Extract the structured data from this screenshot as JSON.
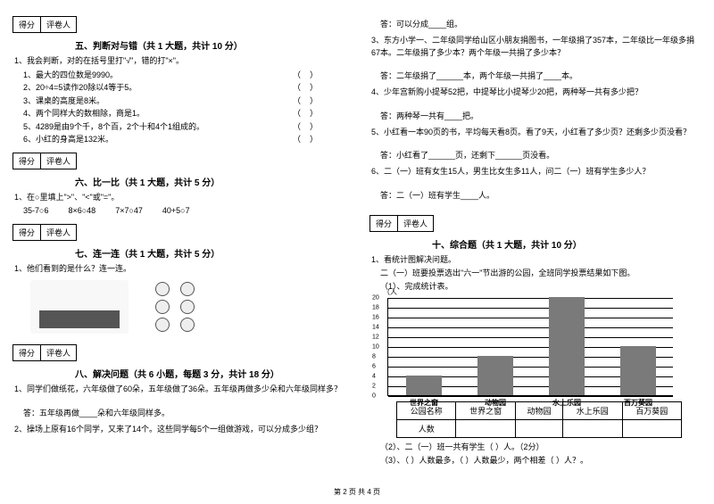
{
  "scorebox": {
    "score": "得分",
    "marker": "评卷人"
  },
  "sec5": {
    "title": "五、判断对与错（共 1 大题，共计 10 分）",
    "lead": "1、我会判断，对的在括号里打\"√\"，错的打\"×\"。",
    "items": [
      "1、最大的四位数是9990。",
      "2、20÷4=5读作20除以4等于5。",
      "3、课桌的高度是8米。",
      "4、两个同样大的数相除，商是1。",
      "5、4289是由9个千，8个百，2个十和4个1组成的。",
      "6、小红的身高是132米。"
    ]
  },
  "sec6": {
    "title": "六、比一比（共 1 大题，共计 5 分）",
    "lead": "1、在○里填上\">\"、\"<\"或\"=\"。",
    "row": [
      "35-7○6",
      "8×6○48",
      "7×7○47",
      "40+5○7"
    ]
  },
  "sec7": {
    "title": "七、连一连（共 1 大题，共计 5 分）",
    "lead": "1、他们看到的是什么？连一连。"
  },
  "sec8": {
    "title": "八、解决问题（共 6 小题，每题 3 分，共计 18 分）",
    "q1": "1、同学们做纸花，六年级做了60朵，五年级做了36朵。五年级再做多少朵和六年级同样多？",
    "a1": "答：五年级再做____朵和六年级同样多。",
    "q2": "2、操场上原有16个同学，又来了14个。这些同学每5个一组做游戏，可以分成多少组？",
    "a2top": "答：可以分成____组。",
    "q3": "3、东方小学一、二年级同学给山区小朋友捐图书，一年级捐了357本，二年级比一年级多捐67本。二年级捐了多少本？两个年级一共捐了多少本？",
    "a3": "答：二年级捐了______本，两个年级一共捐了____本。",
    "q4": "4、少年宫新购小提琴52把，中提琴比小提琴少20把，两种琴一共有多少把？",
    "a4": "答：两种琴一共有____把。",
    "q5": "5、小红看一本90页的书，平均每天看8页。看了9天，小红看了多少页？还剩多少页没看？",
    "a5": "答：小红看了______页，还剩下______页没看。",
    "q6": "6、二（一）班有女生15人，男生比女生多11人，问二（一）班有学生多少人？",
    "a6": "答：二（一）班有学生____人。"
  },
  "sec10": {
    "title": "十、综合题（共 1 大题，共计 10 分）",
    "lead": "1、看统计图解决问题。",
    "sub1": "二（一）班要投票选出\"六一\"节出游的公园，全班同学投票结果如下图。",
    "sub2": "（1）、完成统计表。",
    "chart": {
      "ytitle": "（人",
      "ymax": 20,
      "ticks": [
        20,
        18,
        16,
        14,
        12,
        10,
        8,
        6,
        4,
        2,
        0
      ],
      "categories": [
        "世界之窗",
        "动物园",
        "水上乐园",
        "百万葵园"
      ],
      "values": [
        4,
        8,
        20,
        10
      ],
      "bar_color": "#7a7a7a",
      "grid_color": "#000000",
      "background": "#ffffff"
    },
    "table": {
      "head": [
        "公园名称",
        "世界之窗",
        "动物园",
        "水上乐园",
        "百万葵园"
      ],
      "row": [
        "人数",
        "",
        "",
        "",
        ""
      ]
    },
    "foot1": "（2）、二（一）班一共有学生（        ）人。（2分）",
    "foot2": "（3）、（            ）人数最多，（            ）人数最少，两个相差（        ）人？。"
  },
  "footer": "第 2 页 共 4 页"
}
